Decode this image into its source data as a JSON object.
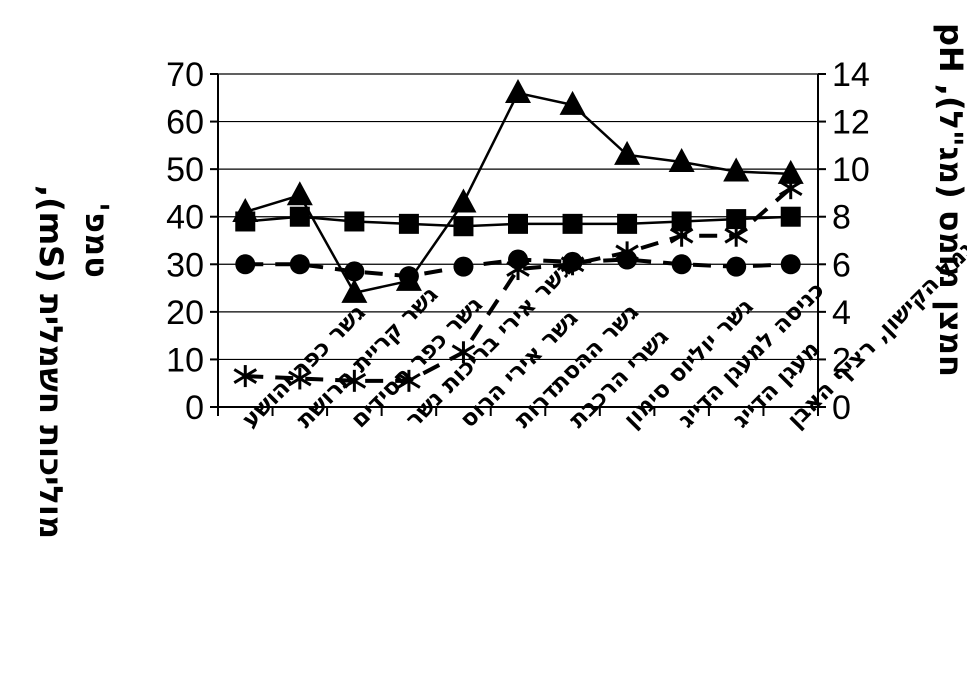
{
  "chart_data": {
    "type": "line",
    "categories": [
      "גשר כפר יהושע",
      "גשר קריית חרושת",
      "גשר כפר חסידים",
      "גשר אירי בריכות נשר",
      "גשר אירי הרוס",
      "גשר ההסתדרות",
      "גשרי הרכבת",
      "גשר יוליוס סימון",
      "כניסה למעגן הדייג",
      "מעגן הדייג",
      "נמל הקישון, רציף האבן"
    ],
    "y_left": {
      "label": "מוליכות חשמלית (mS),",
      "label2": "טמפ'",
      "ylim": [
        0,
        70
      ],
      "ticks": [
        0,
        10,
        20,
        30,
        40,
        50,
        60,
        70
      ]
    },
    "y_right": {
      "label": "חמצן מומס (מג\"ל), pH",
      "ylim": [
        0,
        14
      ],
      "ticks": [
        0,
        2,
        4,
        6,
        8,
        10,
        12,
        14
      ]
    },
    "grid": true,
    "series": [
      {
        "marker": "triangle",
        "style": "solid",
        "axis": "left",
        "values": [
          41,
          44.5,
          24,
          26.5,
          43,
          66,
          63.5,
          53,
          51.5,
          49.5,
          49
        ]
      },
      {
        "marker": "square",
        "style": "solid",
        "axis": "left",
        "values": [
          39,
          40,
          39,
          38.5,
          38,
          38.5,
          38.5,
          38.5,
          39,
          39.5,
          40
        ]
      },
      {
        "marker": "circle",
        "style": "dashed",
        "axis": "right",
        "values": [
          6,
          6,
          5.7,
          5.5,
          5.9,
          6.2,
          6.1,
          6.2,
          6,
          5.9,
          6
        ]
      },
      {
        "marker": "asterisk",
        "style": "dashed",
        "axis": "right",
        "values": [
          1.3,
          1.2,
          1.1,
          1.1,
          2.3,
          5.8,
          6,
          6.5,
          7.2,
          7.2,
          9.2
        ]
      }
    ]
  }
}
